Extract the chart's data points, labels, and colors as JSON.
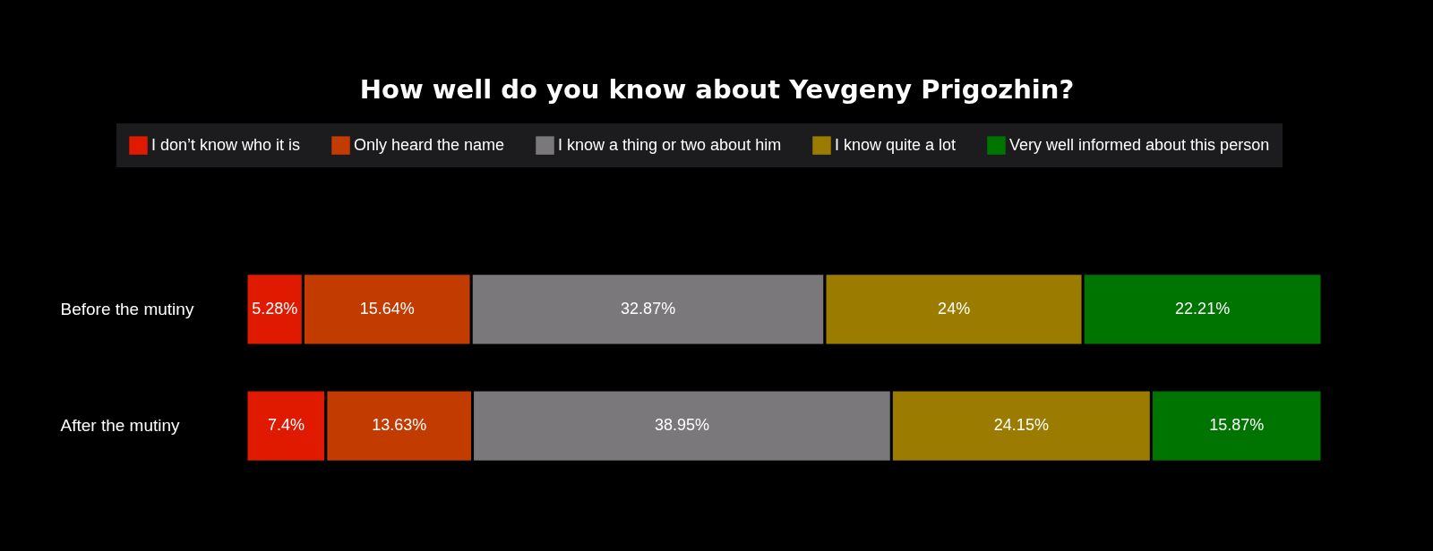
{
  "chart_data": {
    "type": "bar",
    "orientation": "horizontal",
    "stacked": true,
    "title": "How well do you know about Yevgeny Prigozhin?",
    "categories": [
      "Before the mutiny",
      "After the mutiny"
    ],
    "series": [
      {
        "name": "I don’t know who it is",
        "color": "#e01a00",
        "values": [
          5.28,
          7.4
        ],
        "value_labels": [
          "5.28%",
          "7.4%"
        ]
      },
      {
        "name": "Only heard the name",
        "color": "#c23b00",
        "values": [
          15.64,
          13.63
        ],
        "value_labels": [
          "15.64%",
          "13.63%"
        ]
      },
      {
        "name": "I know a thing or two about him",
        "color": "#7a787b",
        "values": [
          32.87,
          38.95
        ],
        "value_labels": [
          "32.87%",
          "38.95%"
        ]
      },
      {
        "name": "I know quite a lot",
        "color": "#9c7c00",
        "values": [
          24,
          24.15
        ],
        "value_labels": [
          "24%",
          "24.15%"
        ]
      },
      {
        "name": "Very well informed about this person",
        "color": "#007400",
        "values": [
          22.21,
          15.87
        ],
        "value_labels": [
          "22.21%",
          "15.87%"
        ]
      }
    ],
    "legend": "top"
  }
}
